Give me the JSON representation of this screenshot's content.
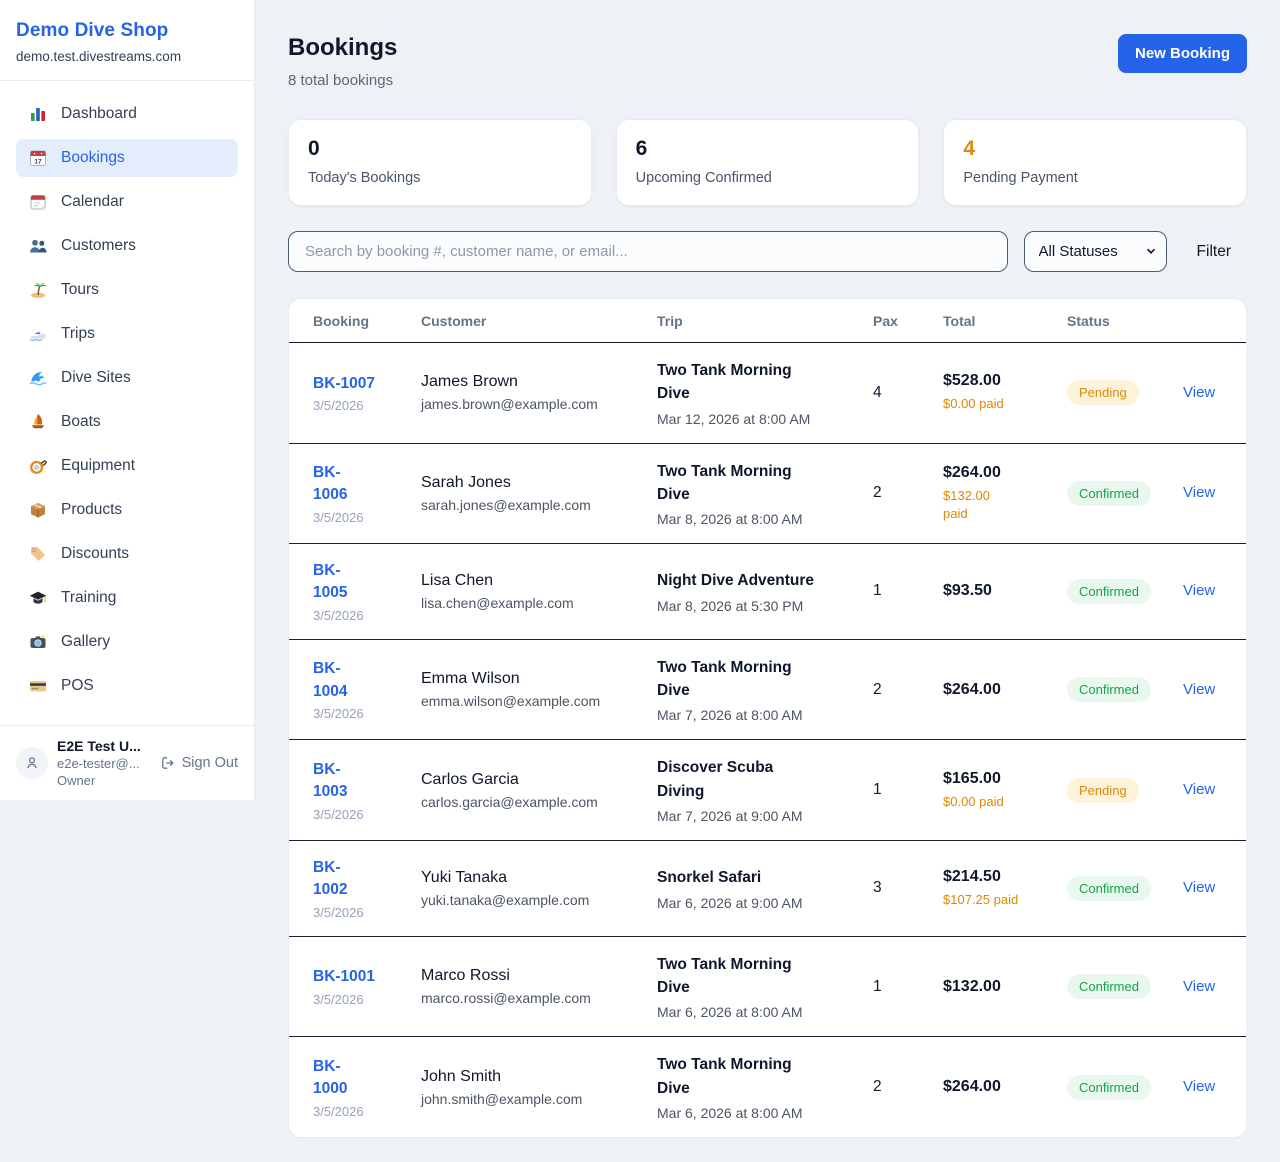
{
  "sidebar": {
    "brand": {
      "name": "Demo Dive Shop",
      "domain": "demo.test.divestreams.com"
    },
    "nav": [
      {
        "icon": "dashboard",
        "label": "Dashboard",
        "active": false
      },
      {
        "icon": "bookings",
        "label": "Bookings",
        "active": true
      },
      {
        "icon": "calendar",
        "label": "Calendar",
        "active": false
      },
      {
        "icon": "customers",
        "label": "Customers",
        "active": false
      },
      {
        "icon": "tours",
        "label": "Tours",
        "active": false
      },
      {
        "icon": "trips",
        "label": "Trips",
        "active": false
      },
      {
        "icon": "dive-sites",
        "label": "Dive Sites",
        "active": false
      },
      {
        "icon": "boats",
        "label": "Boats",
        "active": false
      },
      {
        "icon": "equipment",
        "label": "Equipment",
        "active": false
      },
      {
        "icon": "products",
        "label": "Products",
        "active": false
      },
      {
        "icon": "discounts",
        "label": "Discounts",
        "active": false
      },
      {
        "icon": "training",
        "label": "Training",
        "active": false
      },
      {
        "icon": "gallery",
        "label": "Gallery",
        "active": false
      },
      {
        "icon": "pos",
        "label": "POS",
        "active": false
      }
    ],
    "user": {
      "name": "E2E Test U...",
      "email": "e2e-tester@...",
      "role": "Owner",
      "sign_out_label": "Sign Out"
    }
  },
  "header": {
    "title": "Bookings",
    "subtitle": "8 total bookings",
    "new_booking_label": "New Booking"
  },
  "stats": [
    {
      "value": "0",
      "label": "Today's Bookings",
      "color": "#0f172a"
    },
    {
      "value": "6",
      "label": "Upcoming Confirmed",
      "color": "#0f172a"
    },
    {
      "value": "4",
      "label": "Pending Payment",
      "color": "#dd8a14"
    }
  ],
  "toolbar": {
    "search_placeholder": "Search by booking #, customer name, or email...",
    "status_filter_value": "All Statuses",
    "filter_label": "Filter"
  },
  "table": {
    "columns": [
      "Booking",
      "Customer",
      "Trip",
      "Pax",
      "Total",
      "Status"
    ],
    "view_label": "View",
    "rows": [
      {
        "id": "BK-1007",
        "date": "3/5/2026",
        "customer": "James Brown",
        "email": "james.brown@example.com",
        "trip": "Two Tank Morning\nDive",
        "trip_datetime": "Mar 12, 2026 at 8:00 AM",
        "pax": "4",
        "total": "$528.00",
        "paid": "$0.00 paid",
        "status": "Pending"
      },
      {
        "id": "BK-\n1006",
        "date": "3/5/2026",
        "customer": "Sarah Jones",
        "email": "sarah.jones@example.com",
        "trip": "Two Tank Morning\nDive",
        "trip_datetime": "Mar 8, 2026 at 8:00 AM",
        "pax": "2",
        "total": "$264.00",
        "paid": "$132.00\npaid",
        "status": "Confirmed"
      },
      {
        "id": "BK-\n1005",
        "date": "3/5/2026",
        "customer": "Lisa Chen",
        "email": "lisa.chen@example.com",
        "trip": "Night Dive Adventure",
        "trip_datetime": "Mar 8, 2026 at 5:30 PM",
        "pax": "1",
        "total": "$93.50",
        "paid": null,
        "status": "Confirmed"
      },
      {
        "id": "BK-\n1004",
        "date": "3/5/2026",
        "customer": "Emma Wilson",
        "email": "emma.wilson@example.com",
        "trip": "Two Tank Morning\nDive",
        "trip_datetime": "Mar 7, 2026 at 8:00 AM",
        "pax": "2",
        "total": "$264.00",
        "paid": null,
        "status": "Confirmed"
      },
      {
        "id": "BK-\n1003",
        "date": "3/5/2026",
        "customer": "Carlos Garcia",
        "email": "carlos.garcia@example.com",
        "trip": "Discover Scuba\nDiving",
        "trip_datetime": "Mar 7, 2026 at 9:00 AM",
        "pax": "1",
        "total": "$165.00",
        "paid": "$0.00 paid",
        "status": "Pending"
      },
      {
        "id": "BK-\n1002",
        "date": "3/5/2026",
        "customer": "Yuki Tanaka",
        "email": "yuki.tanaka@example.com",
        "trip": "Snorkel Safari",
        "trip_datetime": "Mar 6, 2026 at 9:00 AM",
        "pax": "3",
        "total": "$214.50",
        "paid": "$107.25 paid",
        "status": "Confirmed"
      },
      {
        "id": "BK-1001",
        "date": "3/5/2026",
        "customer": "Marco Rossi",
        "email": "marco.rossi@example.com",
        "trip": "Two Tank Morning\nDive",
        "trip_datetime": "Mar 6, 2026 at 8:00 AM",
        "pax": "1",
        "total": "$132.00",
        "paid": null,
        "status": "Confirmed"
      },
      {
        "id": "BK-\n1000",
        "date": "3/5/2026",
        "customer": "John Smith",
        "email": "john.smith@example.com",
        "trip": "Two Tank Morning\nDive",
        "trip_datetime": "Mar 6, 2026 at 8:00 AM",
        "pax": "2",
        "total": "$264.00",
        "paid": null,
        "status": "Confirmed"
      }
    ]
  },
  "colors": {
    "accent": "#2563eb",
    "pending_text": "#dc8a04",
    "pending_bg": "#fdf3da",
    "confirmed_text": "#16a34a",
    "confirmed_bg": "#e9f8ef",
    "paid_amount": "#e18700"
  }
}
